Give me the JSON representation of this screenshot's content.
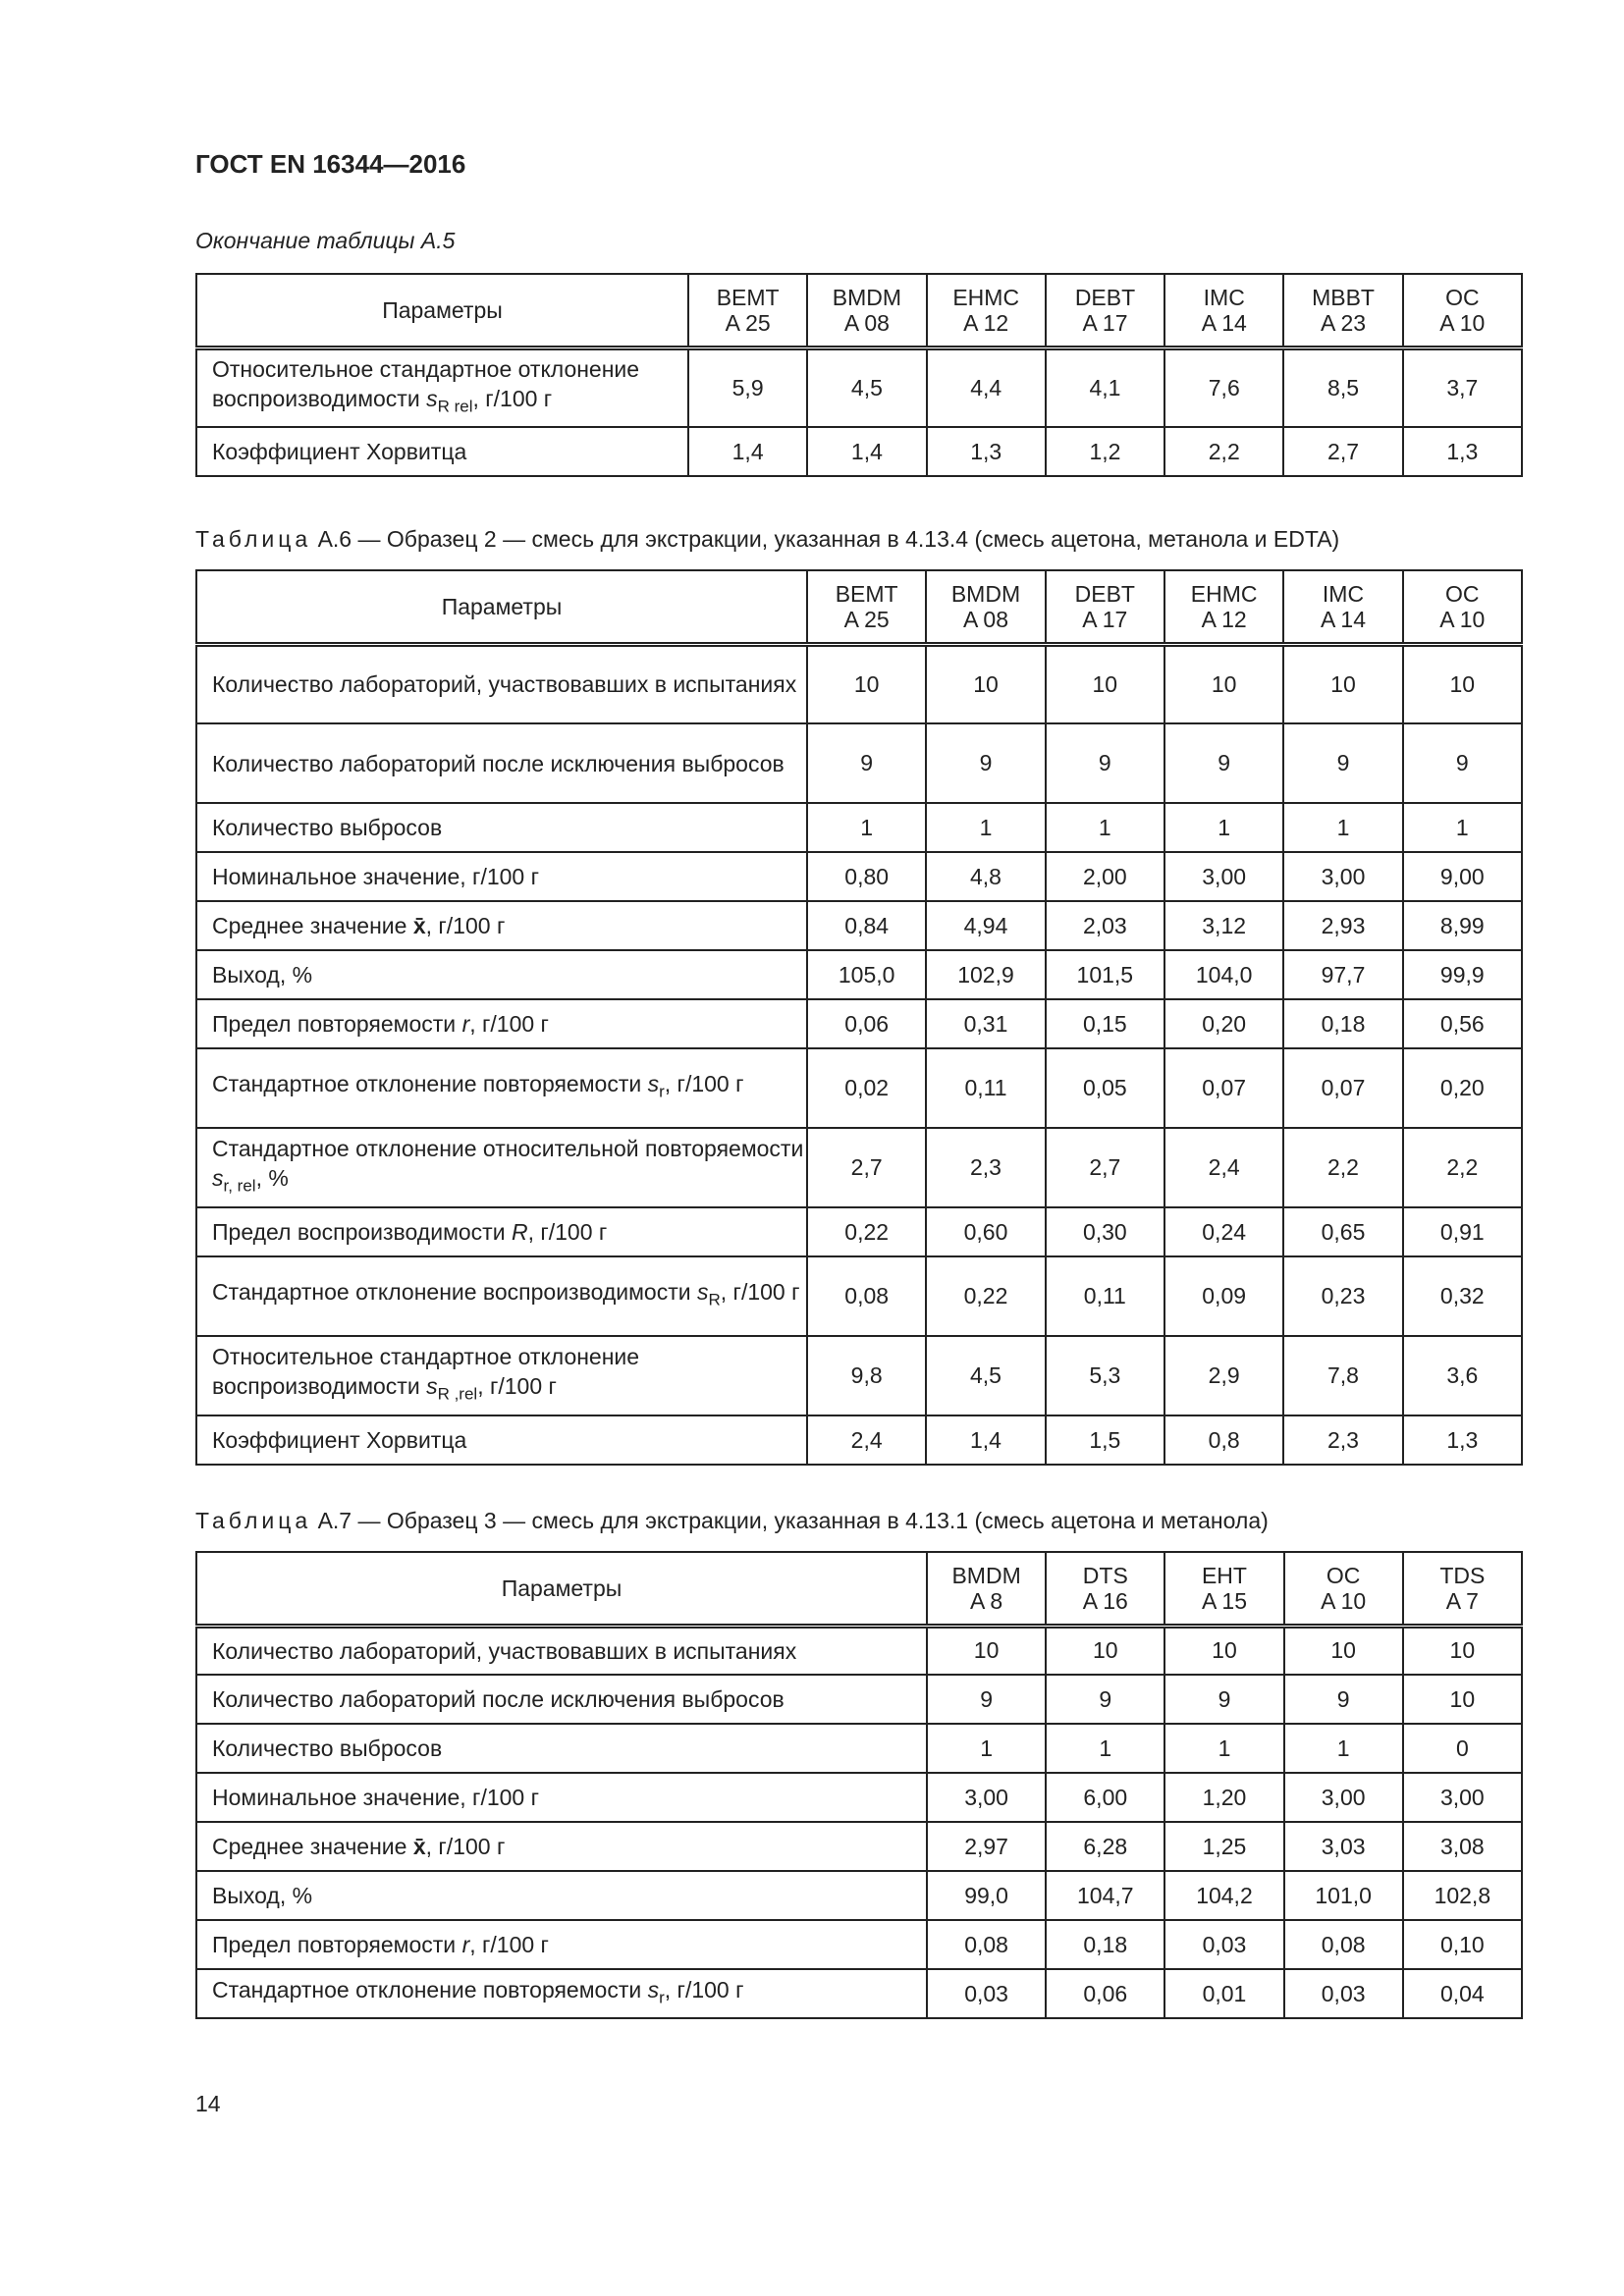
{
  "header": "ГОСТ EN 16344—2016",
  "page_number": "14",
  "table_a5": {
    "caption": "Окончание таблицы А.5",
    "param_header": "Параметры",
    "columns": [
      [
        "BEMT",
        "A 25"
      ],
      [
        "BMDM",
        "A 08"
      ],
      [
        "EHMC",
        "A 12"
      ],
      [
        "DEBT",
        "A 17"
      ],
      [
        "IMC",
        "A 14"
      ],
      [
        "MBBT",
        "A 23"
      ],
      [
        "OC",
        "A 10"
      ]
    ],
    "rows": [
      {
        "label": [
          "Относительное стандартное отклонение воспроизводимости ",
          {
            "i": "s",
            "sub": "R rel"
          },
          ", г/100 г"
        ],
        "values": [
          "5,9",
          "4,5",
          "4,4",
          "4,1",
          "7,6",
          "8,5",
          "3,7"
        ],
        "h": 81
      },
      {
        "label": [
          "Коэффициент Хорвитца"
        ],
        "values": [
          "1,4",
          "1,4",
          "1,3",
          "1,2",
          "2,2",
          "2,7",
          "1,3"
        ],
        "h": 50
      }
    ]
  },
  "table_a6": {
    "caption_prefix": "Таблица",
    "caption": " А.6 — Образец 2 — смесь для экстракции, указанная в 4.13.4 (смесь ацетона, метанола и EDTA)",
    "param_header": "Параметры",
    "columns": [
      [
        "BEMT",
        "A 25"
      ],
      [
        "BMDM",
        "A 08"
      ],
      [
        "DEBT",
        "A 17"
      ],
      [
        "EHMC",
        "A 12"
      ],
      [
        "IMC",
        "A 14"
      ],
      [
        "OC",
        "A 10"
      ]
    ],
    "rows": [
      {
        "label": [
          "Количество лабораторий, участвовавших в испытаниях"
        ],
        "values": [
          "10",
          "10",
          "10",
          "10",
          "10",
          "10"
        ],
        "h": 81
      },
      {
        "label": [
          "Количество лабораторий после исключения выбросов"
        ],
        "values": [
          "9",
          "9",
          "9",
          "9",
          "9",
          "9"
        ],
        "h": 81
      },
      {
        "label": [
          "Количество выбросов"
        ],
        "values": [
          "1",
          "1",
          "1",
          "1",
          "1",
          "1"
        ],
        "h": 50
      },
      {
        "label": [
          "Номинальное значение, г/100 г"
        ],
        "values": [
          "0,80",
          "4,8",
          "2,00",
          "3,00",
          "3,00",
          "9,00"
        ],
        "h": 50
      },
      {
        "label": [
          "Среднее значение ",
          {
            "b": "x̄"
          },
          ", г/100 г"
        ],
        "values": [
          "0,84",
          "4,94",
          "2,03",
          "3,12",
          "2,93",
          "8,99"
        ],
        "h": 50
      },
      {
        "label": [
          "Выход, %"
        ],
        "values": [
          "105,0",
          "102,9",
          "101,5",
          "104,0",
          "97,7",
          "99,9"
        ],
        "h": 50
      },
      {
        "label": [
          "Предел повторяемости ",
          {
            "i": "r"
          },
          ", г/100 г"
        ],
        "values": [
          "0,06",
          "0,31",
          "0,15",
          "0,20",
          "0,18",
          "0,56"
        ],
        "h": 50
      },
      {
        "label": [
          "Стандартное отклонение повторяемости ",
          {
            "i": "s",
            "sub": "r"
          },
          ", г/100 г"
        ],
        "values": [
          "0,02",
          "0,11",
          "0,05",
          "0,07",
          "0,07",
          "0,20"
        ],
        "h": 81
      },
      {
        "label": [
          "Стандартное отклонение относительной повторяемости ",
          {
            "i": "s",
            "sub": "r, rel"
          },
          ", %"
        ],
        "values": [
          "2,7",
          "2,3",
          "2,7",
          "2,4",
          "2,2",
          "2,2"
        ],
        "h": 81
      },
      {
        "label": [
          "Предел воспроизводимости ",
          {
            "i": "R"
          },
          ", г/100 г"
        ],
        "values": [
          "0,22",
          "0,60",
          "0,30",
          "0,24",
          "0,65",
          "0,91"
        ],
        "h": 50
      },
      {
        "label": [
          "Стандартное отклонение воспроизводимости ",
          {
            "i": "s",
            "sub": "R"
          },
          ", г/100 г"
        ],
        "values": [
          "0,08",
          "0,22",
          "0,11",
          "0,09",
          "0,23",
          "0,32"
        ],
        "h": 81
      },
      {
        "label": [
          "Относительное стандартное отклонение воспроизводимости ",
          {
            "i": "s",
            "sub": "R ,rel"
          },
          ", г/100 г"
        ],
        "values": [
          "9,8",
          "4,5",
          "5,3",
          "2,9",
          "7,8",
          "3,6"
        ],
        "h": 81
      },
      {
        "label": [
          "Коэффициент Хорвитца"
        ],
        "values": [
          "2,4",
          "1,4",
          "1,5",
          "0,8",
          "2,3",
          "1,3"
        ],
        "h": 50
      }
    ]
  },
  "table_a7": {
    "caption_prefix": "Таблица",
    "caption": " А.7 — Образец 3 — смесь для экстракции, указанная в 4.13.1 (смесь ацетона и метанола)",
    "param_header": "Параметры",
    "columns": [
      [
        "BMDM",
        "A 8"
      ],
      [
        "DTS",
        "A 16"
      ],
      [
        "EHT",
        "A 15"
      ],
      [
        "OC",
        "A 10"
      ],
      [
        "TDS",
        "A 7"
      ]
    ],
    "rows": [
      {
        "label": [
          "Количество лабораторий, участвовавших в испытаниях"
        ],
        "values": [
          "10",
          "10",
          "10",
          "10",
          "10"
        ],
        "h": 50
      },
      {
        "label": [
          "Количество лабораторий после исключения выбросов"
        ],
        "values": [
          "9",
          "9",
          "9",
          "9",
          "10"
        ],
        "h": 50
      },
      {
        "label": [
          "Количество выбросов"
        ],
        "values": [
          "1",
          "1",
          "1",
          "1",
          "0"
        ],
        "h": 50
      },
      {
        "label": [
          "Номинальное значение, г/100 г"
        ],
        "values": [
          "3,00",
          "6,00",
          "1,20",
          "3,00",
          "3,00"
        ],
        "h": 50
      },
      {
        "label": [
          "Среднее значение ",
          {
            "b": "x̄"
          },
          ", г/100 г"
        ],
        "values": [
          "2,97",
          "6,28",
          "1,25",
          "3,03",
          "3,08"
        ],
        "h": 50
      },
      {
        "label": [
          "Выход, %"
        ],
        "values": [
          "99,0",
          "104,7",
          "104,2",
          "101,0",
          "102,8"
        ],
        "h": 50
      },
      {
        "label": [
          "Предел повторяемости ",
          {
            "i": "r"
          },
          ", г/100 г"
        ],
        "values": [
          "0,08",
          "0,18",
          "0,03",
          "0,08",
          "0,10"
        ],
        "h": 50
      },
      {
        "label": [
          "Стандартное отклонение повторяемости ",
          {
            "i": "s",
            "sub": "r"
          },
          ", г/100 г"
        ],
        "values": [
          "0,03",
          "0,06",
          "0,01",
          "0,03",
          "0,04"
        ],
        "h": 50
      }
    ]
  }
}
